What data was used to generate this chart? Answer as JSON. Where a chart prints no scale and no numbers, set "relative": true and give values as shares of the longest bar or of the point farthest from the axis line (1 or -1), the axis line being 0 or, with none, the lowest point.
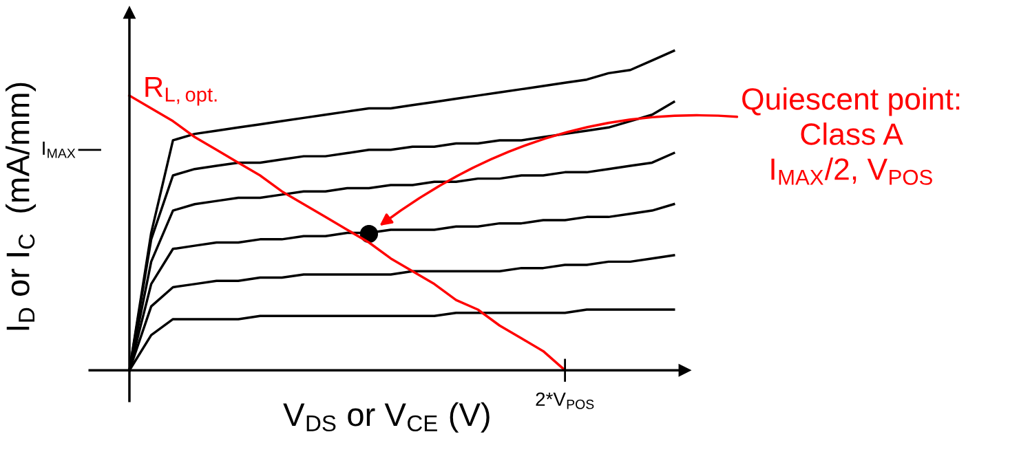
{
  "chart_data": {
    "type": "line",
    "relative": true,
    "xlabel": "V$_{DS}$ or V$_{CE}$ (V)",
    "ylabel": "I$_{D}$ or I$_{C}$  (mA/mm)",
    "marker": "none",
    "line_style": "solid",
    "categories": [
      null,
      null,
      null,
      null,
      null,
      null,
      null,
      null,
      null,
      null,
      null,
      null,
      null,
      null,
      null,
      null,
      null,
      null,
      null,
      null,
      null,
      null,
      null,
      null,
      null,
      null
    ],
    "series": [
      {
        "color": "#000000",
        "values": [
          0,
          0.43,
          0.72,
          0.74,
          0.75,
          0.76,
          0.77,
          0.78,
          0.79,
          0.8,
          0.81,
          0.82,
          0.82,
          0.83,
          0.84,
          0.85,
          0.86,
          0.87,
          0.88,
          0.89,
          0.9,
          0.91,
          0.93,
          0.94,
          0.97,
          1
        ]
      },
      {
        "color": "#000000",
        "values": [
          0,
          0.41,
          0.61,
          0.63,
          0.64,
          0.65,
          0.65,
          0.66,
          0.67,
          0.67,
          0.68,
          0.69,
          0.69,
          0.7,
          0.7,
          0.71,
          0.71,
          0.72,
          0.72,
          0.73,
          0.74,
          0.75,
          0.76,
          0.78,
          0.8,
          0.84
        ]
      },
      {
        "color": "#000000",
        "values": [
          0,
          0.34,
          0.5,
          0.52,
          0.53,
          0.54,
          0.54,
          0.55,
          0.56,
          0.56,
          0.57,
          0.57,
          0.58,
          0.58,
          0.59,
          0.59,
          0.6,
          0.6,
          0.61,
          0.61,
          0.62,
          0.62,
          0.63,
          0.64,
          0.65,
          0.68
        ]
      },
      {
        "color": "#000000",
        "values": [
          0,
          0.27,
          0.38,
          0.39,
          0.4,
          0.4,
          0.41,
          0.41,
          0.42,
          0.42,
          0.43,
          0.43,
          0.44,
          0.44,
          0.44,
          0.45,
          0.45,
          0.46,
          0.46,
          0.47,
          0.47,
          0.48,
          0.48,
          0.49,
          0.5,
          0.52
        ]
      },
      {
        "color": "#000000",
        "values": [
          0,
          0.2,
          0.26,
          0.27,
          0.28,
          0.28,
          0.29,
          0.29,
          0.3,
          0.3,
          0.3,
          0.3,
          0.3,
          0.31,
          0.31,
          0.31,
          0.31,
          0.31,
          0.32,
          0.32,
          0.33,
          0.33,
          0.34,
          0.34,
          0.35,
          0.36
        ]
      },
      {
        "color": "#000000",
        "values": [
          0,
          0.11,
          0.16,
          0.16,
          0.16,
          0.16,
          0.17,
          0.17,
          0.17,
          0.17,
          0.17,
          0.17,
          0.17,
          0.17,
          0.17,
          0.18,
          0.18,
          0.18,
          0.18,
          0.18,
          0.18,
          0.19,
          0.19,
          0.19,
          0.19,
          0.19
        ]
      },
      {
        "color": "#ff0000",
        "values": [
          0.86,
          0.82,
          0.78,
          0.73,
          0.69,
          0.65,
          0.61,
          0.56,
          0.52,
          0.48,
          0.44,
          0.4,
          0.35,
          0.31,
          0.27,
          0.22,
          0.19,
          0.14,
          0.1,
          0.06,
          0,
          null,
          null,
          null,
          null,
          null
        ]
      }
    ],
    "annotations": [
      "I$_{MAX}$",
      "2*V$_{POS}$",
      "R$_{L,opt.}$",
      "Quiescent point:\nClass A\nI$_{MAX}$/2, V$_{POS}$"
    ]
  }
}
